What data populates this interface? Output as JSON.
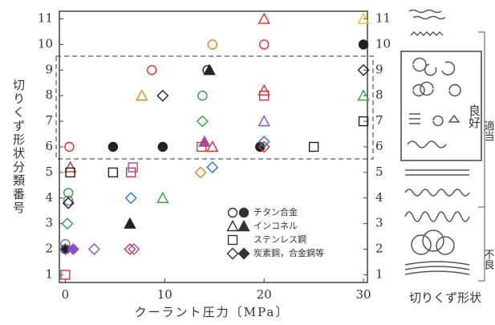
{
  "chart_data": {
    "type": "scatter",
    "x_label": "クーラント圧力〔MPa〕",
    "y_label": "切りくず形状分類番号",
    "side_labels": {
      "good": "良好",
      "adequate": "適当",
      "poor": "不良",
      "caption": "切りくず形状"
    },
    "xlim": [
      -0.6,
      30.4
    ],
    "ylim": [
      0.7,
      11.3
    ],
    "xticks": [
      0,
      10,
      20,
      30
    ],
    "yticks": [
      1,
      2,
      3,
      4,
      5,
      6,
      7,
      8,
      9,
      10,
      11
    ],
    "legend_position": "lower right",
    "series": [
      {
        "name": "チタン合金",
        "marker": "circle",
        "x": [
          0.4,
          8.7,
          14.8,
          20,
          14.3,
          19.6,
          4.8,
          9.8,
          30,
          0.3,
          0,
          0,
          13.8,
          0.3
        ],
        "y": [
          6,
          9,
          10,
          10,
          9,
          6,
          6,
          6,
          10,
          4.2,
          2.2,
          2,
          8,
          3.9
        ],
        "colors": [
          "#e03030",
          "#e03030",
          "#f08020",
          "#e03030",
          "#222222",
          "#222222",
          "#222222",
          "#222222",
          "#222222",
          "#30a040",
          "#777777",
          "#222222",
          "#30a040",
          "#777777"
        ],
        "filled": [
          false,
          false,
          false,
          false,
          false,
          true,
          true,
          true,
          true,
          false,
          false,
          true,
          false,
          false
        ]
      },
      {
        "name": "インコネル",
        "marker": "triangle",
        "x": [
          20,
          30,
          7.7,
          20,
          20,
          30,
          14.5,
          6.5,
          9.8,
          14.8,
          0.5,
          14
        ],
        "y": [
          11,
          11,
          8,
          8.2,
          7,
          8,
          9,
          3,
          4,
          6,
          5.2,
          6.2
        ],
        "colors": [
          "#e03030",
          "#e0c020",
          "#f08020",
          "#e03030",
          "#9050c0",
          "#30a040",
          "#222222",
          "#222222",
          "#30a040",
          "#e03030",
          "#e03030",
          "#9050c0"
        ],
        "filled": [
          false,
          false,
          false,
          false,
          false,
          false,
          true,
          true,
          false,
          false,
          false,
          true
        ]
      },
      {
        "name": "ステンレス鋼",
        "marker": "square",
        "x": [
          0,
          4.8,
          6.6,
          13.7,
          20,
          25,
          30,
          0.5,
          6.8
        ],
        "y": [
          1,
          5,
          5,
          6,
          8,
          6,
          7,
          5,
          5.2
        ],
        "colors": [
          "#e03030",
          "#222222",
          "#e03030",
          "#e03030",
          "#e03030",
          "#222222",
          "#222222",
          "#222222",
          "#9050c0"
        ],
        "filled": [
          false,
          false,
          false,
          false,
          false,
          false,
          false,
          false,
          false
        ]
      },
      {
        "name": "炭素鋼，合金鋼等",
        "marker": "diamond",
        "x": [
          9.8,
          30,
          13.8,
          13.6,
          14.8,
          6.6,
          0.2,
          0,
          0.8,
          2.9,
          6.5,
          6.9,
          20,
          20,
          0.3
        ],
        "y": [
          8,
          9,
          7,
          5,
          5.2,
          4,
          3,
          2,
          2,
          2,
          2,
          2,
          6,
          6.2,
          3.8
        ],
        "colors": [
          "#222222",
          "#222222",
          "#30a040",
          "#f08020",
          "#3070d0",
          "#3070d0",
          "#30a040",
          "#9050c0",
          "#9050c0",
          "#9050c0",
          "#e03030",
          "#9050c0",
          "#e03030",
          "#3070d0",
          "#222222"
        ],
        "filled": [
          false,
          false,
          false,
          false,
          false,
          false,
          false,
          false,
          true,
          false,
          false,
          false,
          false,
          false,
          false
        ]
      }
    ]
  }
}
